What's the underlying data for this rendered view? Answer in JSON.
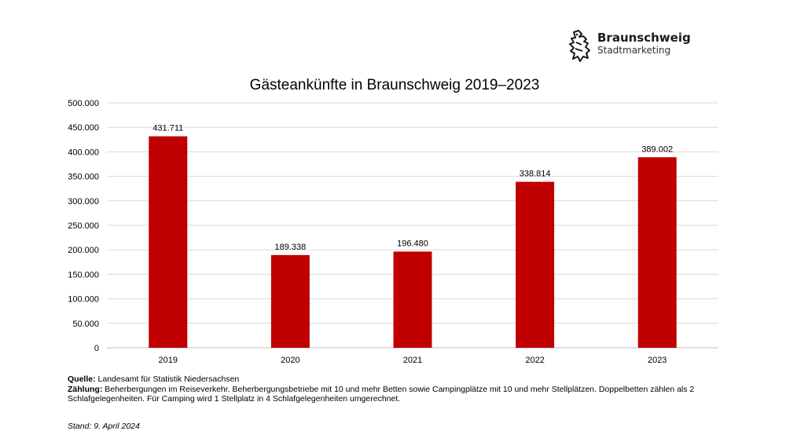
{
  "brand": {
    "name": "Braunschweig",
    "subtitle": "Stadtmarketing"
  },
  "chart_data": {
    "type": "bar",
    "title": "Gästeankünfte in Braunschweig 2019–2023",
    "categories": [
      "2019",
      "2020",
      "2021",
      "2022",
      "2023"
    ],
    "values": [
      431711,
      189338,
      196480,
      338814,
      389002
    ],
    "data_labels": [
      "431.711",
      "189.338",
      "196.480",
      "338.814",
      "389.002"
    ],
    "yticks": [
      0,
      50000,
      100000,
      150000,
      200000,
      250000,
      300000,
      350000,
      400000,
      450000,
      500000
    ],
    "ytick_labels": [
      "0",
      "50.000",
      "100.000",
      "150.000",
      "200.000",
      "250.000",
      "300.000",
      "350.000",
      "400.000",
      "450.000",
      "500.000"
    ],
    "ylim": [
      0,
      500000
    ],
    "xlabel": "",
    "ylabel": "",
    "grid": true,
    "legend": "none",
    "bar_color": "#c00000"
  },
  "footer": {
    "source_label": "Quelle:",
    "source_text": " Landesamt für Statistik Niedersachsen",
    "count_label": "Zählung:",
    "count_text": " Beherbergungen im Reiseverkehr. Beherbergungsbetriebe mit 10 und mehr Betten sowie Campingplätze mit 10 und mehr Stellplätzen. Doppelbetten zählen als 2 Schlafgelegenheiten. Für Camping wird 1 Stellplatz in 4 Schlafgelegenheiten umgerechnet.",
    "stand": "Stand: 9. April 2024"
  }
}
